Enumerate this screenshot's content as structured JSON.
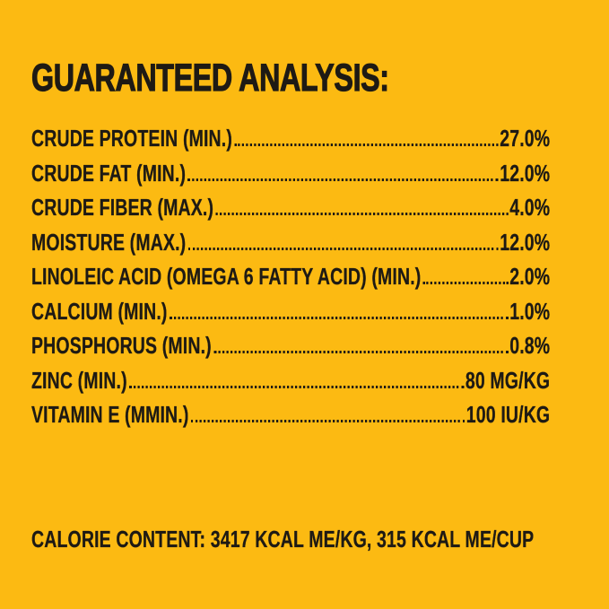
{
  "colors": {
    "background": "#FCBA12",
    "ink": "#1E1A14"
  },
  "title": "GUARANTEED ANALYSIS:",
  "rows": [
    {
      "name": "CRUDE PROTEIN (MIN.)",
      "value": "27.0%"
    },
    {
      "name": "CRUDE FAT (MIN.)",
      "value": "12.0%"
    },
    {
      "name": "CRUDE FIBER (MAX.)",
      "value": "4.0%"
    },
    {
      "name": "MOISTURE (MAX.)",
      "value": "12.0%"
    },
    {
      "name": "LINOLEIC ACID (OMEGA 6 FATTY ACID) (MIN.)",
      "value": "2.0%"
    },
    {
      "name": "CALCIUM (MIN.)",
      "value": "1.0%"
    },
    {
      "name": "PHOSPHORUS (MIN.)",
      "value": "0.8%"
    },
    {
      "name": "ZINC (MIN.)",
      "value": "80 MG/KG"
    },
    {
      "name": "VITAMIN E (MMIN.)",
      "value": "100 IU/KG"
    }
  ],
  "calorie_content": "CALORIE CONTENT: 3417 KCAL ME/KG, 315 KCAL ME/CUP"
}
